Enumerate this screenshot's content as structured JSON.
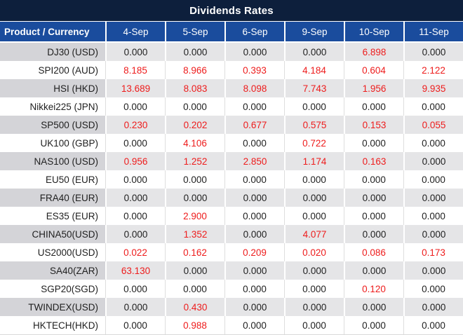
{
  "chart_data": {
    "type": "table",
    "title": "Dividends Rates",
    "columns": {
      "product_label": "Product / Currency",
      "dates": [
        "4-Sep",
        "5-Sep",
        "6-Sep",
        "9-Sep",
        "10-Sep",
        "11-Sep"
      ]
    },
    "rows": [
      {
        "product": "DJ30 (USD)",
        "values": [
          "0.000",
          "0.000",
          "0.000",
          "0.000",
          "6.898",
          "0.000"
        ]
      },
      {
        "product": "SPI200 (AUD)",
        "values": [
          "8.185",
          "8.966",
          "0.393",
          "4.184",
          "0.604",
          "2.122"
        ]
      },
      {
        "product": "HSI (HKD)",
        "values": [
          "13.689",
          "8.083",
          "8.098",
          "7.743",
          "1.956",
          "9.935"
        ]
      },
      {
        "product": "Nikkei225 (JPN)",
        "values": [
          "0.000",
          "0.000",
          "0.000",
          "0.000",
          "0.000",
          "0.000"
        ]
      },
      {
        "product": "SP500 (USD)",
        "values": [
          "0.230",
          "0.202",
          "0.677",
          "0.575",
          "0.153",
          "0.055"
        ]
      },
      {
        "product": "UK100 (GBP)",
        "values": [
          "0.000",
          "4.106",
          "0.000",
          "0.722",
          "0.000",
          "0.000"
        ]
      },
      {
        "product": "NAS100 (USD)",
        "values": [
          "0.956",
          "1.252",
          "2.850",
          "1.174",
          "0.163",
          "0.000"
        ]
      },
      {
        "product": "EU50 (EUR)",
        "values": [
          "0.000",
          "0.000",
          "0.000",
          "0.000",
          "0.000",
          "0.000"
        ]
      },
      {
        "product": "FRA40 (EUR)",
        "values": [
          "0.000",
          "0.000",
          "0.000",
          "0.000",
          "0.000",
          "0.000"
        ]
      },
      {
        "product": "ES35 (EUR)",
        "values": [
          "0.000",
          "2.900",
          "0.000",
          "0.000",
          "0.000",
          "0.000"
        ]
      },
      {
        "product": "CHINA50(USD)",
        "values": [
          "0.000",
          "1.352",
          "0.000",
          "4.077",
          "0.000",
          "0.000"
        ]
      },
      {
        "product": "US2000(USD)",
        "values": [
          "0.022",
          "0.162",
          "0.209",
          "0.020",
          "0.086",
          "0.173"
        ]
      },
      {
        "product": "SA40(ZAR)",
        "values": [
          "63.130",
          "0.000",
          "0.000",
          "0.000",
          "0.000",
          "0.000"
        ]
      },
      {
        "product": "SGP20(SGD)",
        "values": [
          "0.000",
          "0.000",
          "0.000",
          "0.000",
          "0.120",
          "0.000"
        ]
      },
      {
        "product": "TWINDEX(USD)",
        "values": [
          "0.000",
          "0.430",
          "0.000",
          "0.000",
          "0.000",
          "0.000"
        ]
      },
      {
        "product": "HKTECH(HKD)",
        "values": [
          "0.000",
          "0.988",
          "0.000",
          "0.000",
          "0.000",
          "0.000"
        ]
      }
    ],
    "layout_hints": {
      "zero_values_color": "#1F1F1F",
      "nonzero_values_color": "#EE1C1C",
      "striped_rows": true
    }
  },
  "colors": {
    "title_bg": "#0D1F3C",
    "header_bg": "#1A4C9D",
    "alt_product_bg": "#D4D4D8",
    "alt_value_bg": "#E5E5E7",
    "positive_value": "#EE1C1C",
    "zero_value": "#1F1F1F"
  }
}
